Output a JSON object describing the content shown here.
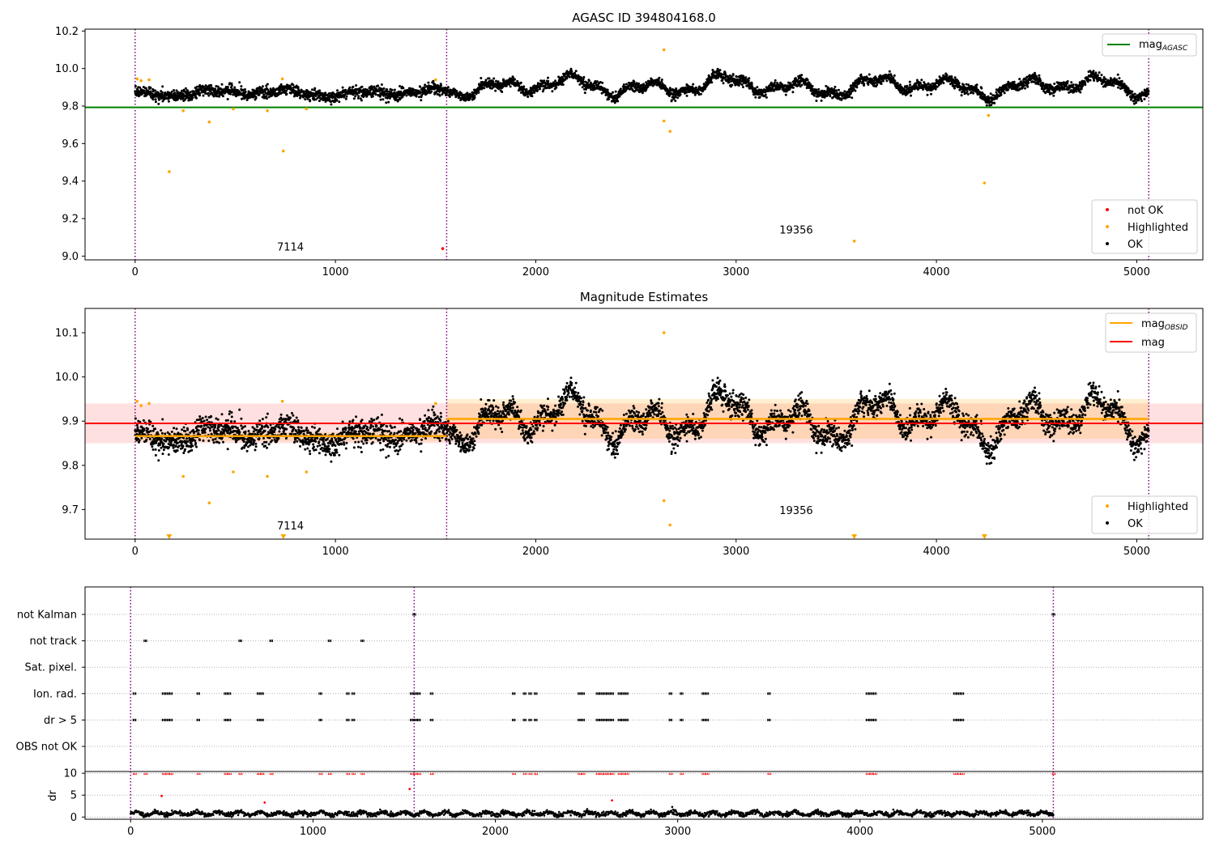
{
  "chart_data": [
    {
      "type": "scatter",
      "title": "AGASC ID 394804168.0",
      "xlabel": "",
      "ylabel": "",
      "xlim": [
        -250,
        5330
      ],
      "ylim": [
        8.98,
        10.21
      ],
      "xticks": [
        0,
        1000,
        2000,
        3000,
        4000,
        5000
      ],
      "yticks": [
        "9.0",
        "9.2",
        "9.4",
        "9.6",
        "9.8",
        "10.0",
        "10.2"
      ],
      "grid": false,
      "obs_boundaries": [
        0,
        1555,
        5060
      ],
      "annotations": [
        {
          "text": "7114",
          "x": 775,
          "y": 9.03
        },
        {
          "text": "19356",
          "x": 3300,
          "y": 9.12
        }
      ],
      "lines": [
        {
          "name": "mag",
          "subscript": "AGASC",
          "y": 9.793,
          "x": [
            -250,
            5330
          ],
          "color": "#008000"
        }
      ],
      "legends": [
        {
          "placement": "upper-right",
          "entries": [
            {
              "label": "mag",
              "sub": "AGASC",
              "kind": "line",
              "color": "#008000"
            }
          ]
        },
        {
          "placement": "lower-right",
          "entries": [
            {
              "label": "not OK",
              "kind": "dot",
              "color": "#ff0000"
            },
            {
              "label": "Highlighted",
              "kind": "dot",
              "color": "#ffa500"
            },
            {
              "label": "OK",
              "kind": "dot",
              "color": "#000000"
            }
          ]
        }
      ],
      "ok_segments": [
        {
          "x0": 0,
          "x1": 1555,
          "base": 9.87,
          "amp": 0.022,
          "noise": 0.024
        },
        {
          "x0": 1555,
          "x1": 5060,
          "base": 9.905,
          "amp": 0.06,
          "noise": 0.022
        }
      ],
      "highlighted": [
        [
          10,
          9.945
        ],
        [
          30,
          9.935
        ],
        [
          70,
          9.94
        ],
        [
          170,
          9.45
        ],
        [
          240,
          9.775
        ],
        [
          370,
          9.715
        ],
        [
          490,
          9.785
        ],
        [
          660,
          9.775
        ],
        [
          735,
          9.945
        ],
        [
          740,
          9.56
        ],
        [
          855,
          9.785
        ],
        [
          1500,
          9.94
        ],
        [
          2640,
          10.1
        ],
        [
          2640,
          9.72
        ],
        [
          2670,
          9.665
        ],
        [
          3590,
          9.08
        ],
        [
          4240,
          9.39
        ],
        [
          4260,
          9.75
        ]
      ],
      "not_ok": [
        [
          1535,
          9.04
        ]
      ]
    },
    {
      "type": "scatter",
      "title": "Magnitude Estimates",
      "xlabel": "",
      "ylabel": "",
      "xlim": [
        -250,
        5330
      ],
      "ylim": [
        9.633,
        10.155
      ],
      "xticks": [
        0,
        1000,
        2000,
        3000,
        4000,
        5000
      ],
      "yticks": [
        "9.7",
        "9.8",
        "9.9",
        "10.0",
        "10.1"
      ],
      "grid": false,
      "obs_boundaries": [
        0,
        1555,
        5060
      ],
      "annotations": [
        {
          "text": "7114",
          "x": 775,
          "y": 9.655
        },
        {
          "text": "19356",
          "x": 3300,
          "y": 9.69
        }
      ],
      "mag": {
        "y": 9.895,
        "band": [
          9.85,
          9.94
        ],
        "x": [
          -250,
          5330
        ],
        "color": "#ff0000"
      },
      "mag_obsid": [
        {
          "obsid": "7114",
          "x": [
            0,
            1555
          ],
          "y": 9.866,
          "band": [
            9.855,
            9.875
          ]
        },
        {
          "obsid": "19356",
          "x": [
            1555,
            5060
          ],
          "y": 9.905,
          "band": [
            9.86,
            9.95
          ]
        }
      ],
      "legends": [
        {
          "placement": "upper-right",
          "entries": [
            {
              "label": "mag",
              "sub": "OBSID",
              "kind": "line",
              "color": "#ffa500"
            },
            {
              "label": "mag",
              "kind": "line",
              "color": "#ff0000"
            }
          ]
        },
        {
          "placement": "lower-right",
          "entries": [
            {
              "label": "Highlighted",
              "kind": "dot",
              "color": "#ffa500"
            },
            {
              "label": "OK",
              "kind": "dot",
              "color": "#000000"
            }
          ]
        }
      ],
      "ok_segments": [
        {
          "x0": 0,
          "x1": 1555,
          "base": 9.87,
          "amp": 0.022,
          "noise": 0.024
        },
        {
          "x0": 1555,
          "x1": 5060,
          "base": 9.905,
          "amp": 0.06,
          "noise": 0.022
        }
      ],
      "highlighted": [
        [
          10,
          9.945
        ],
        [
          30,
          9.935
        ],
        [
          70,
          9.94
        ],
        [
          240,
          9.775
        ],
        [
          370,
          9.715
        ],
        [
          490,
          9.785
        ],
        [
          660,
          9.775
        ],
        [
          735,
          9.945
        ],
        [
          855,
          9.785
        ],
        [
          1500,
          9.94
        ],
        [
          2640,
          10.1
        ],
        [
          2640,
          9.72
        ],
        [
          2670,
          9.665
        ]
      ],
      "below_range": [
        170,
        740,
        3590,
        4240
      ]
    },
    {
      "type": "scatter",
      "title": "",
      "xlabel": "",
      "ylabel": "",
      "xlim": [
        -250,
        5880
      ],
      "xticks": [
        0,
        1000,
        2000,
        3000,
        4000,
        5000
      ],
      "obs_boundaries": [
        0,
        1555,
        5060
      ],
      "flag_rows": [
        "not Kalman",
        "not track",
        "Sat. pixel.",
        "Ion. rad.",
        "dr > 5",
        "OBS not OK"
      ],
      "flags": {
        "not Kalman": [
          1555,
          5060
        ],
        "not track": [
          80,
          600,
          770,
          1090,
          1270
        ],
        "Sat. pixel.": [],
        "Ion. rad.": [
          20,
          180,
          200,
          220,
          370,
          520,
          540,
          700,
          720,
          1040,
          1190,
          1220,
          1540,
          1560,
          1580,
          1650,
          2100,
          2160,
          2190,
          2220,
          2460,
          2480,
          2560,
          2580,
          2600,
          2620,
          2640,
          2680,
          2700,
          2720,
          2960,
          3020,
          3140,
          3160,
          3500,
          4040,
          4060,
          4080,
          4520,
          4540,
          4560
        ],
        "dr > 5": [
          20,
          180,
          200,
          220,
          370,
          520,
          540,
          700,
          720,
          1040,
          1190,
          1220,
          1540,
          1560,
          1580,
          1650,
          2100,
          2160,
          2190,
          2220,
          2460,
          2480,
          2560,
          2580,
          2600,
          2620,
          2640,
          2680,
          2700,
          2720,
          2960,
          3020,
          3140,
          3160,
          3500,
          4040,
          4060,
          4080,
          4520,
          4540,
          4560
        ],
        "OBS not OK": []
      },
      "dr": {
        "ylabel": "dr",
        "ylim": [
          -0.5,
          10.4
        ],
        "yticks": [
          "0",
          "5",
          "10"
        ],
        "base": 0.8,
        "capped": [
          20,
          80,
          180,
          200,
          220,
          370,
          520,
          540,
          600,
          700,
          720,
          770,
          1040,
          1090,
          1190,
          1220,
          1270,
          1540,
          1560,
          1580,
          1650,
          2100,
          2160,
          2190,
          2220,
          2460,
          2480,
          2560,
          2580,
          2600,
          2620,
          2640,
          2680,
          2700,
          2720,
          2960,
          3020,
          3140,
          3160,
          3500,
          4040,
          4060,
          4080,
          4520,
          4540,
          4560,
          5060
        ],
        "outliers": [
          [
            170,
            4.8
          ],
          [
            735,
            3.3
          ],
          [
            1530,
            6.4
          ],
          [
            2640,
            3.8
          ]
        ]
      }
    }
  ]
}
